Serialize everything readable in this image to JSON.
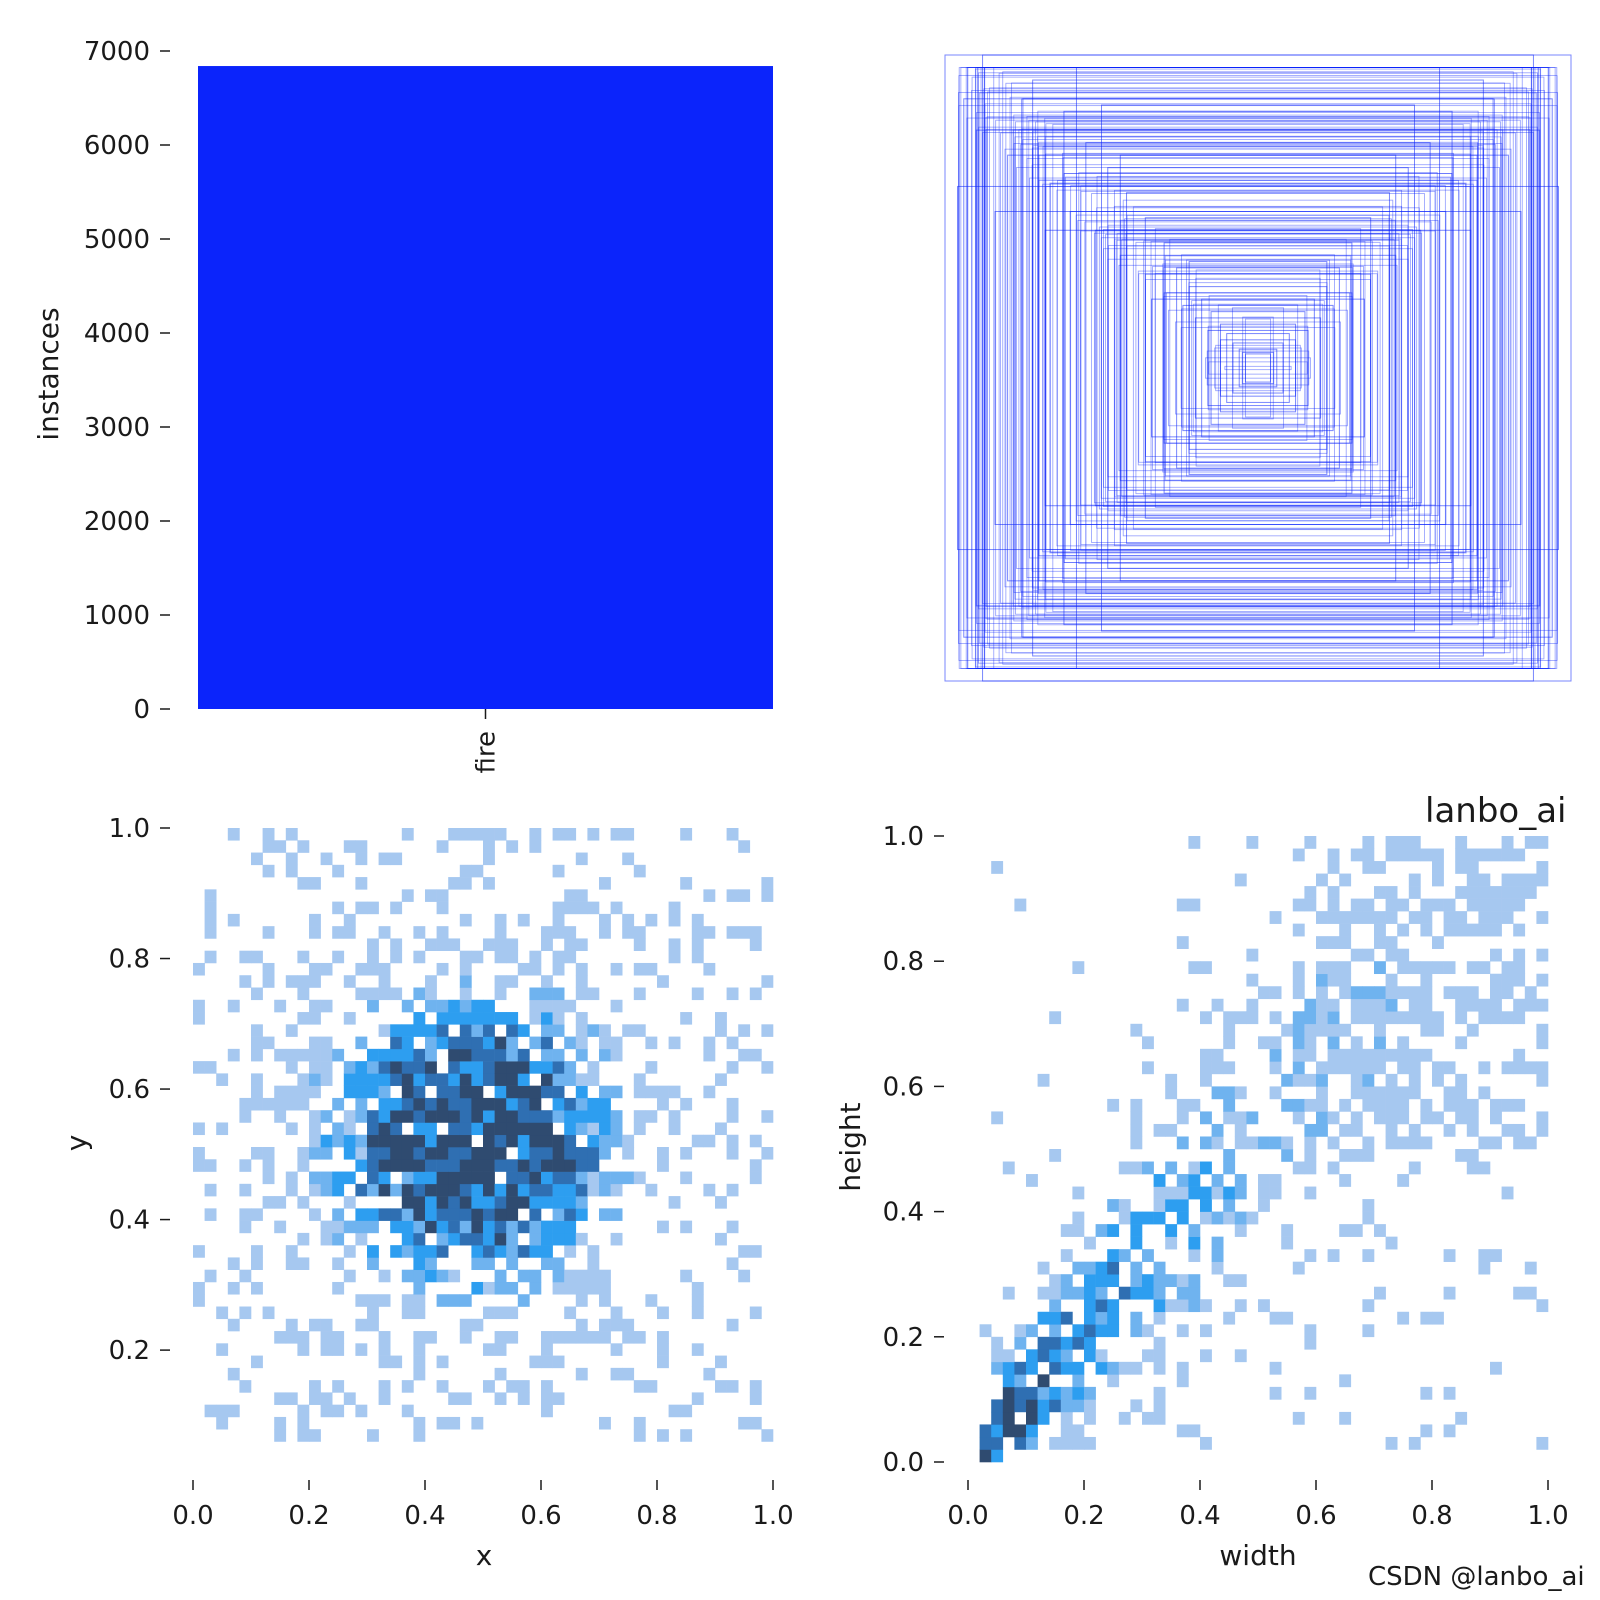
{
  "colors": {
    "bar": "#0b24fb",
    "box_stroke": "#0b24fb",
    "hist_light": "#a6c8f0",
    "hist_mid": "#2d9ef0",
    "hist_dark": "#2f4b70",
    "watermark": "#fde3d2",
    "csdn": "#b8b8b8"
  },
  "watermarks": {
    "overlay": "lanbo_ai",
    "footer": "CSDN @lanbo_ai"
  },
  "chart_data": [
    {
      "type": "bar",
      "categories": [
        "fire"
      ],
      "values": [
        6840
      ],
      "ylabel": "instances",
      "xlabel": "",
      "ylim": [
        0,
        7000
      ],
      "yticks": [
        "0",
        "1000",
        "2000",
        "3000",
        "4000",
        "5000",
        "6000",
        "7000"
      ],
      "grid": false
    },
    {
      "type": "scatter",
      "description_type": "box_overlay",
      "boxes_wh": [
        [
          1.0,
          1.0
        ],
        [
          0.88,
          1.0
        ],
        [
          0.72,
          0.92
        ],
        [
          0.94,
          0.86
        ],
        [
          0.62,
          0.82
        ],
        [
          0.9,
          0.76
        ],
        [
          0.55,
          0.72
        ],
        [
          0.8,
          0.68
        ],
        [
          0.48,
          0.64
        ],
        [
          0.7,
          0.6
        ],
        [
          0.42,
          0.56
        ],
        [
          0.6,
          0.5
        ],
        [
          0.36,
          0.48
        ],
        [
          0.52,
          0.44
        ],
        [
          0.3,
          0.4
        ],
        [
          0.44,
          0.36
        ],
        [
          0.26,
          0.32
        ],
        [
          0.36,
          0.3
        ],
        [
          0.22,
          0.26
        ],
        [
          0.3,
          0.24
        ],
        [
          0.18,
          0.22
        ],
        [
          0.24,
          0.2
        ],
        [
          0.15,
          0.18
        ],
        [
          0.2,
          0.16
        ],
        [
          0.12,
          0.14
        ],
        [
          0.16,
          0.12
        ],
        [
          0.1,
          0.11
        ],
        [
          0.12,
          0.09
        ],
        [
          0.08,
          0.08
        ],
        [
          0.06,
          0.06
        ],
        [
          0.05,
          0.05
        ],
        [
          0.04,
          0.045
        ],
        [
          0.96,
          0.58
        ],
        [
          0.58,
          0.96
        ],
        [
          0.84,
          0.5
        ],
        [
          0.5,
          0.84
        ],
        [
          0.68,
          0.44
        ],
        [
          0.44,
          0.68
        ],
        [
          0.34,
          0.22
        ],
        [
          0.22,
          0.34
        ]
      ],
      "grid": false
    },
    {
      "type": "heatmap",
      "xlabel": "x",
      "ylabel": "y",
      "xlim": [
        0,
        1
      ],
      "ylim": [
        0.05,
        1
      ],
      "xticks": [
        "0.0",
        "0.2",
        "0.4",
        "0.6",
        "0.8",
        "1.0"
      ],
      "yticks": [
        "0.2",
        "0.4",
        "0.6",
        "0.8",
        "1.0"
      ],
      "center": [
        0.48,
        0.52
      ],
      "spread": [
        0.17,
        0.15
      ],
      "grid": false
    },
    {
      "type": "heatmap",
      "xlabel": "width",
      "ylabel": "height",
      "xlim": [
        0,
        1
      ],
      "ylim": [
        0,
        1
      ],
      "xticks": [
        "0.0",
        "0.2",
        "0.4",
        "0.6",
        "0.8",
        "1.0"
      ],
      "yticks": [
        "0.0",
        "0.2",
        "0.4",
        "0.6",
        "0.8",
        "1.0"
      ],
      "trend": "density concentrated near (0.07, 0.08), spreading along diagonal",
      "grid": false
    }
  ]
}
